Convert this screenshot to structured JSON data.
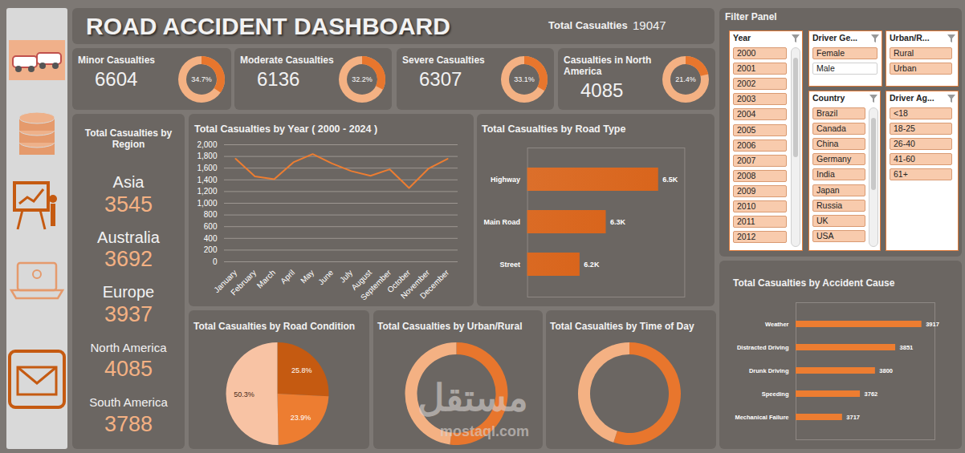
{
  "title": "ROAD ACCIDENT DASHBOARD",
  "total": {
    "label": "Total Casualties",
    "value": 19047
  },
  "ring_domain": [
    0,
    100
  ],
  "ring_colors": [
    "#e8762d",
    "#f4b183"
  ],
  "kpis": [
    {
      "label": "Minor Casualties",
      "value": 6604,
      "percent": 34.7,
      "percent_label": "34.7%"
    },
    {
      "label": "Moderate Casualties",
      "value": 6136,
      "percent": 32.2,
      "percent_label": "32.2%"
    },
    {
      "label": "Severe Casualties",
      "value": 6307,
      "percent": 33.1,
      "percent_label": "33.1%"
    },
    {
      "label": "Casualties in North America",
      "value": 4085,
      "percent": 21.4,
      "percent_label": "21.4%"
    }
  ],
  "regions": {
    "title": "Total Casualties by Region",
    "items": [
      {
        "name": "Asia",
        "value": 3545
      },
      {
        "name": "Australia",
        "value": 3692
      },
      {
        "name": "Europe",
        "value": 3937
      },
      {
        "name": "North America",
        "value": 4085
      },
      {
        "name": "South America",
        "value": 3788
      }
    ]
  },
  "filter_panel": {
    "title": "Filter Panel",
    "slicers": [
      {
        "title": "Year",
        "items": [
          "2000",
          "2001",
          "2002",
          "2003",
          "2004",
          "2005",
          "2006",
          "2007",
          "2008",
          "2009",
          "2010",
          "2011",
          "2012"
        ],
        "unselected": []
      },
      {
        "title": "Driver Ge...",
        "items": [
          "Female",
          "Male"
        ],
        "unselected": [
          "Male"
        ]
      },
      {
        "title": "Urban/R...",
        "items": [
          "Rural",
          "Urban"
        ],
        "unselected": []
      },
      {
        "title": "Country",
        "items": [
          "Brazil",
          "Canada",
          "China",
          "Germany",
          "India",
          "Japan",
          "Russia",
          "UK",
          "USA"
        ],
        "unselected": []
      },
      {
        "title": "Driver Ag...",
        "items": [
          "<18",
          "18-25",
          "26-40",
          "41-60",
          "61+"
        ],
        "unselected": []
      }
    ]
  },
  "watermark": [
    "مستقل",
    "mostaql.com"
  ],
  "chart_data": [
    {
      "type": "line",
      "title": "Total Casualties by Year  ( 2000 - 2024 )",
      "categories": [
        "January",
        "February",
        "March",
        "April",
        "May",
        "June",
        "July",
        "August",
        "September",
        "October",
        "November",
        "December"
      ],
      "values": [
        1760,
        1460,
        1410,
        1700,
        1840,
        1680,
        1550,
        1470,
        1580,
        1260,
        1590,
        1760
      ],
      "color": "#ed7d31",
      "ylim": [
        0,
        2000
      ],
      "yticks": [
        0,
        200,
        400,
        600,
        800,
        1000,
        1200,
        1400,
        1600,
        1800,
        2000
      ],
      "grid": true
    },
    {
      "type": "bar",
      "title": "Total Casualties by Road Type",
      "orientation": "horizontal",
      "categories": [
        "Highway",
        "Main Road",
        "Street"
      ],
      "values": [
        6500,
        6300,
        6200
      ],
      "value_labels": [
        "6.5K",
        "6.3K",
        "6.2K"
      ],
      "data_labels": true,
      "tick_labels": "y",
      "xlim": [
        6000,
        6600
      ],
      "xticks": [],
      "color": "#d9651c"
    },
    {
      "type": "pie",
      "title": "Total Casualties by Road Condition",
      "values": [
        25.8,
        23.9,
        50.3
      ],
      "value_labels": [
        "25.8%",
        "23.9%",
        "50.3%"
      ],
      "colors": [
        "#c55a11",
        "#ed7d31",
        "#f8c3a4"
      ],
      "data_labels": true
    },
    {
      "type": "donut",
      "title": "Total Casualties by Urban/Rural",
      "values": [
        52,
        48
      ],
      "colors": [
        "#e8762d",
        "#f4b183"
      ],
      "data_labels": false
    },
    {
      "type": "donut",
      "title": "Total Casualties by Time of Day",
      "values": [
        55,
        45
      ],
      "colors": [
        "#e8762d",
        "#f4b183"
      ],
      "data_labels": false
    },
    {
      "type": "bar",
      "title": "Total Casualties by Accident Cause",
      "orientation": "horizontal",
      "categories": [
        "Weather",
        "Distracted Driving",
        "Drunk Driving",
        "Speeding",
        "Mechanical Failure"
      ],
      "values": [
        3917,
        3851,
        3800,
        3762,
        3717
      ],
      "data_labels": true,
      "tick_labels": "y",
      "xlim": [
        3600,
        3950
      ],
      "xticks": [],
      "color": "#ed7d31"
    }
  ]
}
